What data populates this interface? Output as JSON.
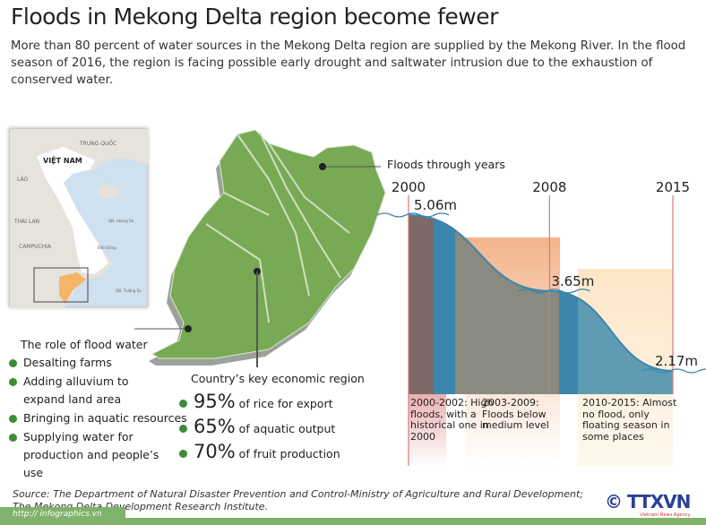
{
  "title": "Floods in Mekong Delta region become fewer",
  "intro": "More than 80 percent of water sources in the Mekong Delta region are supplied by the Mekong River. In the flood season of 2016, the region is facing possible early drought and saltwater intrusion due to the exhaustion of conserved water.",
  "inset_map": {
    "labels": [
      "TRUNG QUỐC",
      "VIỆT NAM",
      "LÀO",
      "THÁI LAN",
      "CAMPUCHIA",
      "QĐ. Hoàng Sa",
      "Biển Đông",
      "QĐ. Trường Sa"
    ]
  },
  "floods_label": "Floods through years",
  "chart_data": {
    "type": "line",
    "title": "Floods through years",
    "x": [
      2000,
      2008,
      2015
    ],
    "values": [
      5.06,
      3.65,
      2.17
    ],
    "labels": [
      "5.06m",
      "3.65m",
      "2.17m"
    ],
    "xticks": [
      "2000",
      "2008",
      "2015"
    ],
    "unit": "m",
    "periods": [
      {
        "label": "2000-2002:",
        "text": "High floods, with a historical one in 2000",
        "color": "#e9a5a5"
      },
      {
        "label": "2003-2009:",
        "text": "Floods below medium level",
        "color": "#f3b58c"
      },
      {
        "label": "2010-2015:",
        "text": "Almost no flood, only floating season in some places",
        "color": "#fde6c7"
      }
    ]
  },
  "role": {
    "title": "The role of flood water",
    "items": [
      "Desalting farms",
      "Adding alluvium to expand land area",
      "Bringing in aquatic resources",
      "Supplying water for production and people’s use"
    ]
  },
  "economy": {
    "title": "Country’s key economic region",
    "items": [
      {
        "pct": "95%",
        "text": "of rice for export"
      },
      {
        "pct": "65%",
        "text": "of aquatic output"
      },
      {
        "pct": "70%",
        "text": "of fruit production"
      }
    ]
  },
  "source": "Source: The Department of Natural Disaster Prevention and Control-Ministry of Agriculture and Rural Development; The Mekong Delta Development Research Institute.",
  "url": "http:// infographics.vn",
  "logo": {
    "copyright": "©",
    "name": "TTXVN",
    "sub": "Vietnam News Agency"
  },
  "colors": {
    "green": "#7aaa55",
    "water": "#3a86ad"
  }
}
